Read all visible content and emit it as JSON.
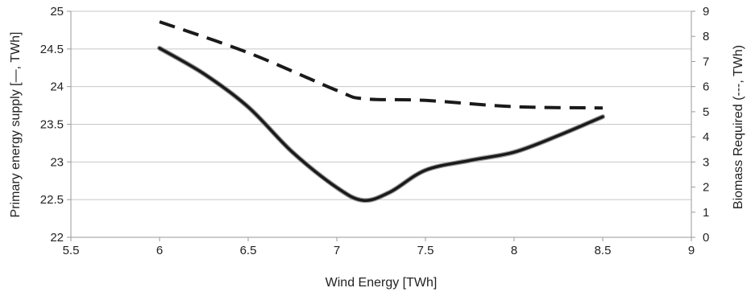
{
  "chart_data": {
    "type": "line",
    "xlabel": "Wind Energy [TWh]",
    "ylabel": "Primary energy supply [―, TWh]",
    "y2label": "Biomass Required (---, TWh)",
    "xlim": [
      5.5,
      9
    ],
    "ylim": [
      22,
      25
    ],
    "y2lim": [
      0,
      9
    ],
    "xticks": [
      "5.5",
      "6",
      "6.5",
      "7",
      "7.5",
      "8",
      "8.5",
      "9"
    ],
    "yticks": [
      "22",
      "22.5",
      "23",
      "23.5",
      "24",
      "24.5",
      "25"
    ],
    "y2ticks": [
      "0",
      "1",
      "2",
      "3",
      "4",
      "5",
      "6",
      "7",
      "8",
      "9"
    ],
    "grid": "horizontal",
    "series": [
      {
        "style": "solid",
        "axis": "left",
        "color": "#1a1a1a",
        "points": [
          [
            6.0,
            24.51
          ],
          [
            6.25,
            24.17
          ],
          [
            6.5,
            23.73
          ],
          [
            6.75,
            23.13
          ],
          [
            7.0,
            22.66
          ],
          [
            7.15,
            22.49
          ],
          [
            7.3,
            22.6
          ],
          [
            7.5,
            22.89
          ],
          [
            7.75,
            23.02
          ],
          [
            8.0,
            23.13
          ],
          [
            8.25,
            23.35
          ],
          [
            8.5,
            23.6
          ]
        ]
      },
      {
        "style": "dashed",
        "axis": "right",
        "color": "#1a1a1a",
        "points": [
          [
            6.0,
            8.58
          ],
          [
            6.5,
            7.35
          ],
          [
            7.0,
            5.85
          ],
          [
            7.15,
            5.52
          ],
          [
            7.5,
            5.45
          ],
          [
            8.0,
            5.2
          ],
          [
            8.5,
            5.15
          ]
        ]
      }
    ]
  }
}
